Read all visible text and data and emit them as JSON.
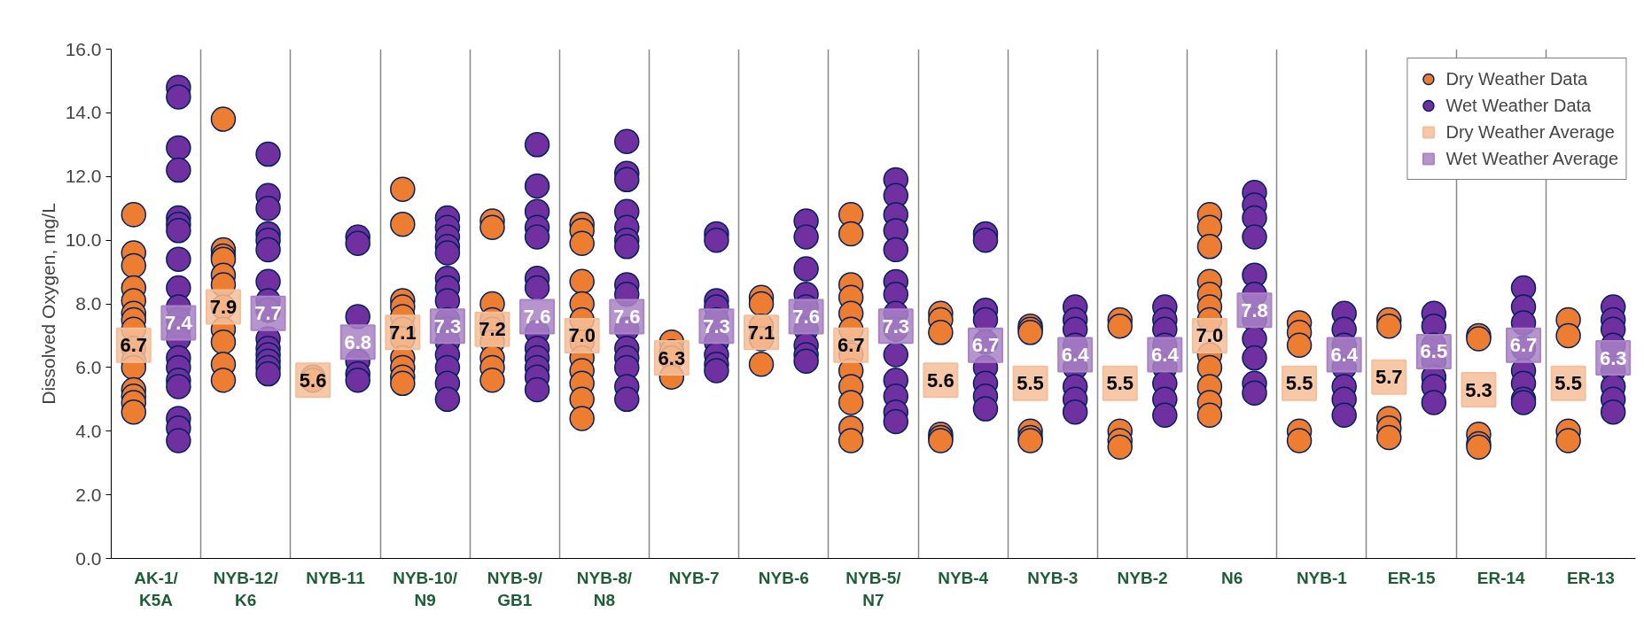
{
  "chart_data": {
    "type": "scatter",
    "ylabel": "Dissolved Oxygen, mg/L",
    "ylim": [
      0,
      16
    ],
    "yticks": [
      {
        "value": 0,
        "label": "0.0"
      },
      {
        "value": 2,
        "label": "2.0"
      },
      {
        "value": 4,
        "label": "4.0"
      },
      {
        "value": 6,
        "label": "6.0"
      },
      {
        "value": 8,
        "label": "8.0"
      },
      {
        "value": 10,
        "label": "10.0"
      },
      {
        "value": 12,
        "label": "12.0"
      },
      {
        "value": 14,
        "label": "14.0"
      },
      {
        "value": 16,
        "label": "16.0"
      }
    ],
    "categories": [
      "AK-1/\nK5A",
      "NYB-12/\nK6",
      "NYB-11",
      "NYB-10/\nN9",
      "NYB-9/\nGB1",
      "NYB-8/\nN8",
      "NYB-7",
      "NYB-6",
      "NYB-5/\nN7",
      "NYB-4",
      "NYB-3",
      "NYB-2",
      "N6",
      "NYB-1",
      "ER-15",
      "ER-14",
      "ER-13"
    ],
    "grid": "x",
    "legend": "top right",
    "series": [
      {
        "name": "Dry Weather Data",
        "color": "#ed7d31",
        "marker": "circle",
        "x": [
          "AK-1/\nK5A",
          "AK-1/\nK5A",
          "AK-1/\nK5A",
          "AK-1/\nK5A",
          "AK-1/\nK5A",
          "AK-1/\nK5A",
          "AK-1/\nK5A",
          "AK-1/\nK5A",
          "AK-1/\nK5A",
          "AK-1/\nK5A",
          "AK-1/\nK5A",
          "AK-1/\nK5A",
          "AK-1/\nK5A",
          "AK-1/\nK5A",
          "AK-1/\nK5A",
          "NYB-12/\nK6",
          "NYB-12/\nK6",
          "NYB-12/\nK6",
          "NYB-12/\nK6",
          "NYB-12/\nK6",
          "NYB-12/\nK6",
          "NYB-12/\nK6",
          "NYB-12/\nK6",
          "NYB-12/\nK6",
          "NYB-12/\nK6",
          "NYB-12/\nK6",
          "NYB-11",
          "NYB-11",
          "NYB-10/\nN9",
          "NYB-10/\nN9",
          "NYB-10/\nN9",
          "NYB-10/\nN9",
          "NYB-10/\nN9",
          "NYB-10/\nN9",
          "NYB-10/\nN9",
          "NYB-10/\nN9",
          "NYB-10/\nN9",
          "NYB-10/\nN9",
          "NYB-10/\nN9",
          "NYB-9/\nGB1",
          "NYB-9/\nGB1",
          "NYB-9/\nGB1",
          "NYB-9/\nGB1",
          "NYB-9/\nGB1",
          "NYB-9/\nGB1",
          "NYB-9/\nGB1",
          "NYB-9/\nGB1",
          "NYB-9/\nGB1",
          "NYB-8/\nN8",
          "NYB-8/\nN8",
          "NYB-8/\nN8",
          "NYB-8/\nN8",
          "NYB-8/\nN8",
          "NYB-8/\nN8",
          "NYB-8/\nN8",
          "NYB-8/\nN8",
          "NYB-8/\nN8",
          "NYB-8/\nN8",
          "NYB-8/\nN8",
          "NYB-8/\nN8",
          "NYB-7",
          "NYB-7",
          "NYB-7",
          "NYB-7",
          "NYB-6",
          "NYB-6",
          "NYB-6",
          "NYB-6",
          "NYB-6",
          "NYB-5/\nN7",
          "NYB-5/\nN7",
          "NYB-5/\nN7",
          "NYB-5/\nN7",
          "NYB-5/\nN7",
          "NYB-5/\nN7",
          "NYB-5/\nN7",
          "NYB-5/\nN7",
          "NYB-5/\nN7",
          "NYB-5/\nN7",
          "NYB-5/\nN7",
          "NYB-5/\nN7",
          "NYB-4",
          "NYB-4",
          "NYB-4",
          "NYB-4",
          "NYB-4",
          "NYB-4",
          "NYB-3",
          "NYB-3",
          "NYB-3",
          "NYB-3",
          "NYB-3",
          "NYB-3",
          "NYB-2",
          "NYB-2",
          "NYB-2",
          "NYB-2",
          "NYB-2",
          "N6",
          "N6",
          "N6",
          "N6",
          "N6",
          "N6",
          "N6",
          "N6",
          "N6",
          "N6",
          "N6",
          "N6",
          "NYB-1",
          "NYB-1",
          "NYB-1",
          "NYB-1",
          "NYB-1",
          "ER-15",
          "ER-15",
          "ER-15",
          "ER-15",
          "ER-15",
          "ER-14",
          "ER-14",
          "ER-14",
          "ER-14",
          "ER-14",
          "ER-13",
          "ER-13",
          "ER-13",
          "ER-13"
        ],
        "values": [
          10.8,
          9.6,
          9.2,
          8.5,
          8.1,
          7.7,
          7.5,
          7.2,
          6.6,
          6.2,
          6.0,
          5.3,
          5.1,
          4.9,
          4.6,
          13.8,
          9.7,
          9.5,
          9.4,
          8.9,
          8.6,
          7.9,
          7.2,
          6.8,
          6.1,
          5.6,
          5.7,
          5.6,
          11.6,
          10.5,
          8.1,
          7.9,
          7.6,
          7.2,
          6.9,
          6.3,
          6.0,
          5.7,
          5.5,
          10.6,
          10.4,
          8.0,
          7.5,
          7.2,
          6.8,
          6.3,
          6.0,
          5.6,
          10.5,
          10.3,
          9.9,
          8.7,
          8.0,
          7.5,
          6.8,
          6.3,
          5.9,
          5.5,
          5.0,
          4.4,
          6.8,
          6.5,
          6.3,
          5.7,
          8.2,
          8.0,
          7.3,
          6.9,
          6.1,
          10.8,
          10.2,
          8.6,
          8.2,
          7.7,
          7.2,
          6.4,
          5.9,
          5.4,
          4.9,
          4.1,
          3.7,
          7.7,
          7.5,
          7.1,
          3.9,
          3.8,
          3.7,
          7.3,
          7.2,
          7.1,
          4.0,
          3.8,
          3.7,
          7.5,
          7.3,
          4.0,
          3.7,
          3.5,
          10.8,
          10.4,
          9.8,
          8.7,
          8.3,
          7.9,
          7.5,
          6.4,
          6.0,
          5.4,
          4.9,
          4.5,
          7.4,
          7.1,
          6.7,
          4.0,
          3.7,
          7.5,
          7.3,
          4.4,
          4.1,
          3.8,
          7.0,
          6.9,
          3.9,
          3.6,
          3.5,
          7.5,
          7.0,
          4.0,
          3.7
        ]
      },
      {
        "name": "Wet Weather Data",
        "color": "#7030a0",
        "marker": "circle",
        "x": [
          "AK-1/\nK5A",
          "AK-1/\nK5A",
          "AK-1/\nK5A",
          "AK-1/\nK5A",
          "AK-1/\nK5A",
          "AK-1/\nK5A",
          "AK-1/\nK5A",
          "AK-1/\nK5A",
          "AK-1/\nK5A",
          "AK-1/\nK5A",
          "AK-1/\nK5A",
          "AK-1/\nK5A",
          "AK-1/\nK5A",
          "AK-1/\nK5A",
          "AK-1/\nK5A",
          "AK-1/\nK5A",
          "AK-1/\nK5A",
          "AK-1/\nK5A",
          "AK-1/\nK5A",
          "AK-1/\nK5A",
          "NYB-12/\nK6",
          "NYB-12/\nK6",
          "NYB-12/\nK6",
          "NYB-12/\nK6",
          "NYB-12/\nK6",
          "NYB-12/\nK6",
          "NYB-12/\nK6",
          "NYB-12/\nK6",
          "NYB-12/\nK6",
          "NYB-12/\nK6",
          "NYB-12/\nK6",
          "NYB-12/\nK6",
          "NYB-12/\nK6",
          "NYB-12/\nK6",
          "NYB-12/\nK6",
          "NYB-11",
          "NYB-11",
          "NYB-11",
          "NYB-11",
          "NYB-11",
          "NYB-11",
          "NYB-10/\nN9",
          "NYB-10/\nN9",
          "NYB-10/\nN9",
          "NYB-10/\nN9",
          "NYB-10/\nN9",
          "NYB-10/\nN9",
          "NYB-10/\nN9",
          "NYB-10/\nN9",
          "NYB-10/\nN9",
          "NYB-10/\nN9",
          "NYB-10/\nN9",
          "NYB-10/\nN9",
          "NYB-10/\nN9",
          "NYB-10/\nN9",
          "NYB-10/\nN9",
          "NYB-9/\nGB1",
          "NYB-9/\nGB1",
          "NYB-9/\nGB1",
          "NYB-9/\nGB1",
          "NYB-9/\nGB1",
          "NYB-9/\nGB1",
          "NYB-9/\nGB1",
          "NYB-9/\nGB1",
          "NYB-9/\nGB1",
          "NYB-9/\nGB1",
          "NYB-9/\nGB1",
          "NYB-9/\nGB1",
          "NYB-9/\nGB1",
          "NYB-8/\nN8",
          "NYB-8/\nN8",
          "NYB-8/\nN8",
          "NYB-8/\nN8",
          "NYB-8/\nN8",
          "NYB-8/\nN8",
          "NYB-8/\nN8",
          "NYB-8/\nN8",
          "NYB-8/\nN8",
          "NYB-8/\nN8",
          "NYB-8/\nN8",
          "NYB-8/\nN8",
          "NYB-8/\nN8",
          "NYB-8/\nN8",
          "NYB-8/\nN8",
          "NYB-7",
          "NYB-7",
          "NYB-7",
          "NYB-7",
          "NYB-7",
          "NYB-7",
          "NYB-7",
          "NYB-7",
          "NYB-7",
          "NYB-6",
          "NYB-6",
          "NYB-6",
          "NYB-6",
          "NYB-6",
          "NYB-6",
          "NYB-6",
          "NYB-6",
          "NYB-6",
          "NYB-5/\nN7",
          "NYB-5/\nN7",
          "NYB-5/\nN7",
          "NYB-5/\nN7",
          "NYB-5/\nN7",
          "NYB-5/\nN7",
          "NYB-5/\nN7",
          "NYB-5/\nN7",
          "NYB-5/\nN7",
          "NYB-5/\nN7",
          "NYB-5/\nN7",
          "NYB-5/\nN7",
          "NYB-5/\nN7",
          "NYB-5/\nN7",
          "NYB-4",
          "NYB-4",
          "NYB-4",
          "NYB-4",
          "NYB-4",
          "NYB-4",
          "NYB-4",
          "NYB-4",
          "NYB-4",
          "NYB-3",
          "NYB-3",
          "NYB-3",
          "NYB-3",
          "NYB-3",
          "NYB-3",
          "NYB-3",
          "NYB-3",
          "NYB-2",
          "NYB-2",
          "NYB-2",
          "NYB-2",
          "NYB-2",
          "NYB-2",
          "NYB-2",
          "NYB-2",
          "N6",
          "N6",
          "N6",
          "N6",
          "N6",
          "N6",
          "N6",
          "N6",
          "N6",
          "N6",
          "N6",
          "NYB-1",
          "NYB-1",
          "NYB-1",
          "NYB-1",
          "NYB-1",
          "NYB-1",
          "NYB-1",
          "ER-15",
          "ER-15",
          "ER-15",
          "ER-15",
          "ER-15",
          "ER-15",
          "ER-15",
          "ER-14",
          "ER-14",
          "ER-14",
          "ER-14",
          "ER-14",
          "ER-14",
          "ER-14",
          "ER-14",
          "ER-13",
          "ER-13",
          "ER-13",
          "ER-13",
          "ER-13",
          "ER-13",
          "ER-13",
          "ER-13"
        ],
        "values": [
          14.8,
          14.5,
          12.9,
          12.2,
          10.7,
          10.5,
          10.3,
          9.4,
          8.5,
          7.9,
          7.5,
          7.2,
          6.9,
          6.3,
          6.0,
          5.6,
          5.4,
          4.4,
          4.1,
          3.7,
          12.7,
          11.4,
          11.0,
          10.2,
          10.0,
          9.7,
          8.7,
          8.1,
          7.8,
          6.9,
          6.6,
          6.4,
          6.2,
          6.0,
          5.8,
          10.1,
          9.9,
          7.6,
          6.2,
          5.8,
          5.6,
          10.7,
          10.4,
          10.1,
          9.8,
          9.6,
          8.8,
          8.5,
          8.1,
          7.5,
          7.2,
          6.8,
          6.4,
          6.0,
          5.5,
          5.0,
          13.0,
          11.7,
          10.9,
          10.4,
          10.1,
          8.8,
          8.5,
          7.1,
          6.6,
          6.3,
          6.0,
          5.7,
          5.3,
          13.1,
          12.1,
          11.9,
          10.9,
          10.4,
          10.0,
          9.8,
          8.6,
          8.3,
          7.2,
          6.6,
          6.3,
          6.0,
          5.4,
          5.0,
          10.2,
          10.0,
          8.1,
          7.9,
          7.5,
          6.8,
          6.4,
          6.1,
          5.9,
          10.6,
          10.1,
          9.1,
          8.3,
          7.9,
          7.2,
          6.7,
          6.4,
          6.2,
          11.9,
          11.4,
          10.8,
          10.3,
          9.7,
          8.7,
          8.3,
          7.7,
          7.2,
          6.4,
          5.6,
          5.1,
          4.6,
          4.3,
          10.2,
          10.0,
          7.8,
          7.5,
          6.8,
          6.0,
          5.5,
          5.1,
          4.7,
          7.9,
          7.5,
          7.2,
          6.7,
          6.0,
          5.4,
          5.0,
          4.6,
          7.9,
          7.5,
          7.2,
          6.7,
          6.0,
          5.5,
          5.0,
          4.5,
          11.5,
          11.1,
          10.7,
          10.1,
          8.9,
          8.3,
          7.5,
          6.9,
          6.3,
          5.5,
          5.2,
          7.7,
          7.2,
          6.7,
          6.0,
          5.4,
          5.0,
          4.5,
          7.7,
          7.3,
          6.7,
          6.2,
          5.7,
          5.4,
          4.9,
          8.5,
          7.9,
          7.4,
          6.6,
          5.9,
          5.5,
          5.0,
          4.9,
          7.9,
          7.5,
          7.2,
          6.7,
          5.9,
          5.4,
          5.0,
          4.6
        ]
      },
      {
        "name": "Dry Weather Average",
        "color": "#f6be98",
        "marker": "square",
        "x": [
          "AK-1/\nK5A",
          "NYB-12/\nK6",
          "NYB-11",
          "NYB-10/\nN9",
          "NYB-9/\nGB1",
          "NYB-8/\nN8",
          "NYB-7",
          "NYB-6",
          "NYB-5/\nN7",
          "NYB-4",
          "NYB-3",
          "NYB-2",
          "N6",
          "NYB-1",
          "ER-15",
          "ER-14",
          "ER-13"
        ],
        "values": [
          6.7,
          7.9,
          5.6,
          7.1,
          7.2,
          7.0,
          6.3,
          7.1,
          6.7,
          5.6,
          5.5,
          5.5,
          7.0,
          5.5,
          5.7,
          5.3,
          5.5
        ],
        "value_labels": [
          "6.7",
          "7.9",
          "5.6",
          "7.1",
          "7.2",
          "7.0",
          "6.3",
          "7.1",
          "6.7",
          "5.6",
          "5.5",
          "5.5",
          "7.0",
          "5.5",
          "5.7",
          "5.3",
          "5.5"
        ]
      },
      {
        "name": "Wet Weather Average",
        "color": "#a983c6",
        "marker": "square",
        "x": [
          "AK-1/\nK5A",
          "NYB-12/\nK6",
          "NYB-11",
          "NYB-10/\nN9",
          "NYB-9/\nGB1",
          "NYB-8/\nN8",
          "NYB-7",
          "NYB-6",
          "NYB-5/\nN7",
          "NYB-4",
          "NYB-3",
          "NYB-2",
          "N6",
          "NYB-1",
          "ER-15",
          "ER-14",
          "ER-13"
        ],
        "values": [
          7.4,
          7.7,
          6.8,
          7.3,
          7.6,
          7.6,
          7.3,
          7.6,
          7.3,
          6.7,
          6.4,
          6.4,
          7.8,
          6.4,
          6.5,
          6.7,
          6.3
        ],
        "value_labels": [
          "7.4",
          "7.7",
          "6.8",
          "7.3",
          "7.6",
          "7.6",
          "7.3",
          "7.6",
          "7.3",
          "6.7",
          "6.4",
          "6.4",
          "7.8",
          "6.4",
          "6.5",
          "6.7",
          "6.3"
        ]
      }
    ]
  }
}
